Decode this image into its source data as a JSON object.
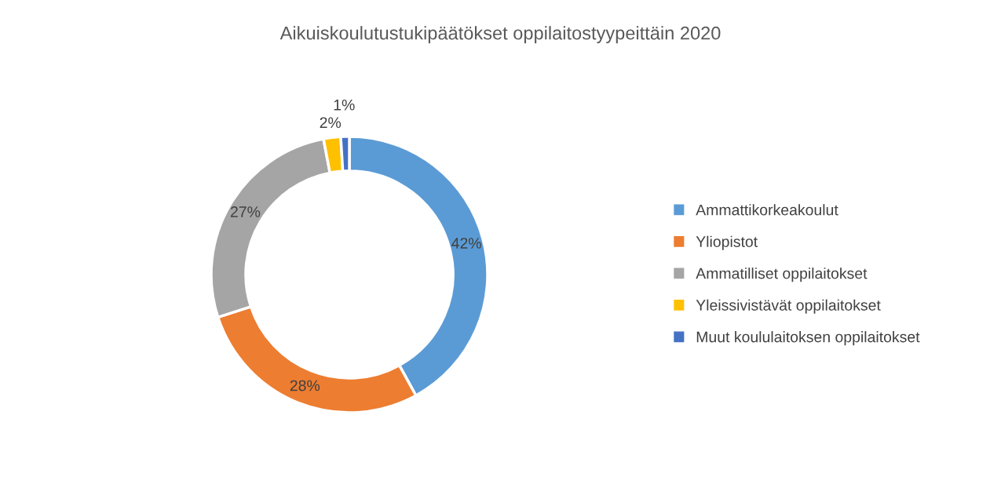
{
  "chart_data": {
    "type": "donut",
    "title": "Aikuiskoulutustukipäätökset oppilaitostyypeittäin 2020",
    "categories": [
      "Ammattikorkeakoulut",
      "Yliopistot",
      "Ammatilliset oppilaitokset",
      "Yleissivistävät oppilaitokset",
      "Muut koululaitoksen oppilaitokset"
    ],
    "values": [
      42,
      28,
      27,
      2,
      1
    ],
    "value_labels": [
      "42%",
      "28%",
      "27%",
      "2%",
      "1%"
    ],
    "colors": [
      "#5b9bd5",
      "#ed7d31",
      "#a5a5a5",
      "#ffc000",
      "#4472c4"
    ],
    "legend": "right"
  }
}
